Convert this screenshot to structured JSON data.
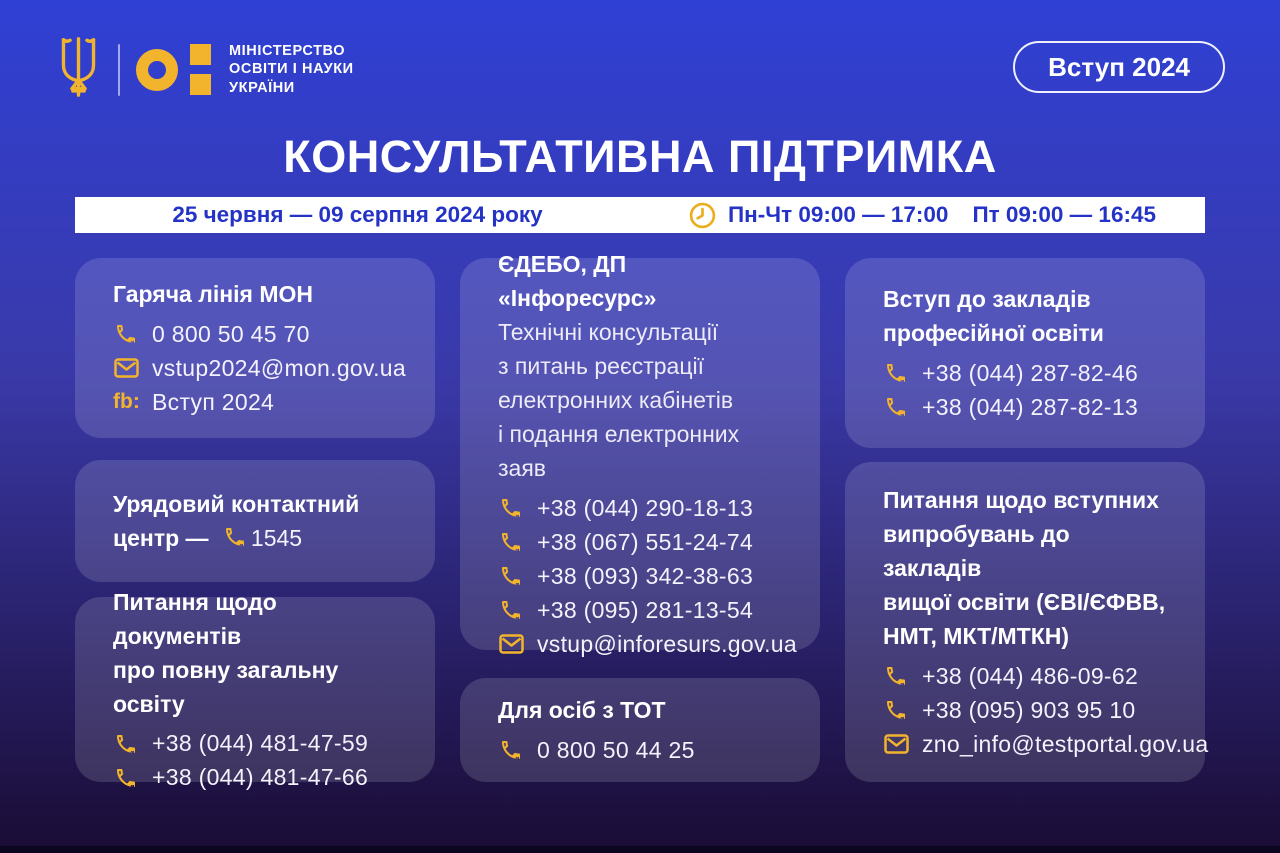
{
  "header": {
    "ministry_lines": [
      "Міністерство",
      "освіти і науки",
      "України"
    ],
    "badge": "Вступ 2024"
  },
  "title": "КОНСУЛЬТАТИВНА ПІДТРИМКА",
  "info_bar": {
    "dates": "25 червня — 09 серпня 2024 року",
    "hours_weekdays": "Пн-Чт 09:00 — 17:00",
    "hours_friday": "Пт 09:00 — 16:45"
  },
  "labels": {
    "fb": "fb:"
  },
  "colors": {
    "accent_yellow": "#F2B42C",
    "bar_text_blue": "#2433C5",
    "bg_top": "#2F40D4",
    "bg_bottom": "#1A0C34",
    "card_bg": "rgba(255,255,255,0.14)"
  },
  "columns": [
    [
      {
        "name": "hotline-mon",
        "title_lines": [
          "Гаряча лінія МОН"
        ],
        "items": [
          {
            "icon": "phone",
            "text": "0 800 50 45 70"
          },
          {
            "icon": "email",
            "text": "vstup2024@mon.gov.ua"
          },
          {
            "icon": "fb",
            "text": "Вступ 2024"
          }
        ]
      },
      {
        "name": "gov-contact-center",
        "title_lines": [
          "Урядовий контактний"
        ],
        "title_inline": {
          "prefix": "центр — ",
          "icon": "phone",
          "text": "1545"
        }
      },
      {
        "name": "school-documents",
        "title_lines": [
          "Питання щодо документів",
          "про повну загальну освіту"
        ],
        "items": [
          {
            "icon": "phone",
            "text": "+38 (044) 481-47-59"
          },
          {
            "icon": "phone",
            "text": "+38 (044) 481-47-66"
          }
        ]
      }
    ],
    [
      {
        "name": "edebo-inforesurs",
        "title_lines": [
          "ЄДЕБО, ДП «Інфоресурс»"
        ],
        "body_lines": [
          "Технічні консультації",
          "з питань реєстрації",
          "електронних кабінетів",
          "і подання електронних заяв"
        ],
        "items": [
          {
            "icon": "phone",
            "text": "+38 (044) 290-18-13"
          },
          {
            "icon": "phone",
            "text": "+38 (067) 551-24-74"
          },
          {
            "icon": "phone",
            "text": "+38 (093) 342-38-63"
          },
          {
            "icon": "phone",
            "text": "+38 (095) 281-13-54"
          },
          {
            "icon": "email",
            "text": "vstup@inforesurs.gov.ua"
          }
        ]
      },
      {
        "name": "tot-persons",
        "title_lines": [
          "Для осіб з ТОТ"
        ],
        "items": [
          {
            "icon": "phone",
            "text": "0 800 50 44 25"
          }
        ]
      }
    ],
    [
      {
        "name": "vocational-education",
        "title_lines": [
          "Вступ до закладів",
          "професійної освіти"
        ],
        "items": [
          {
            "icon": "phone",
            "text": "+38 (044) 287-82-46"
          },
          {
            "icon": "phone",
            "text": "+38 (044) 287-82-13"
          }
        ]
      },
      {
        "name": "entrance-exams",
        "title_lines": [
          "Питання щодо вступних",
          "випробувань до закладів",
          "вищої освіти (ЄВІ/ЄФВВ,",
          "НМТ, МКТ/МТКН)"
        ],
        "items": [
          {
            "icon": "phone",
            "text": "+38 (044) 486-09-62"
          },
          {
            "icon": "phone",
            "text": "+38 (095) 903 95 10"
          },
          {
            "icon": "email",
            "text": "zno_info@testportal.gov.ua"
          }
        ]
      }
    ]
  ]
}
